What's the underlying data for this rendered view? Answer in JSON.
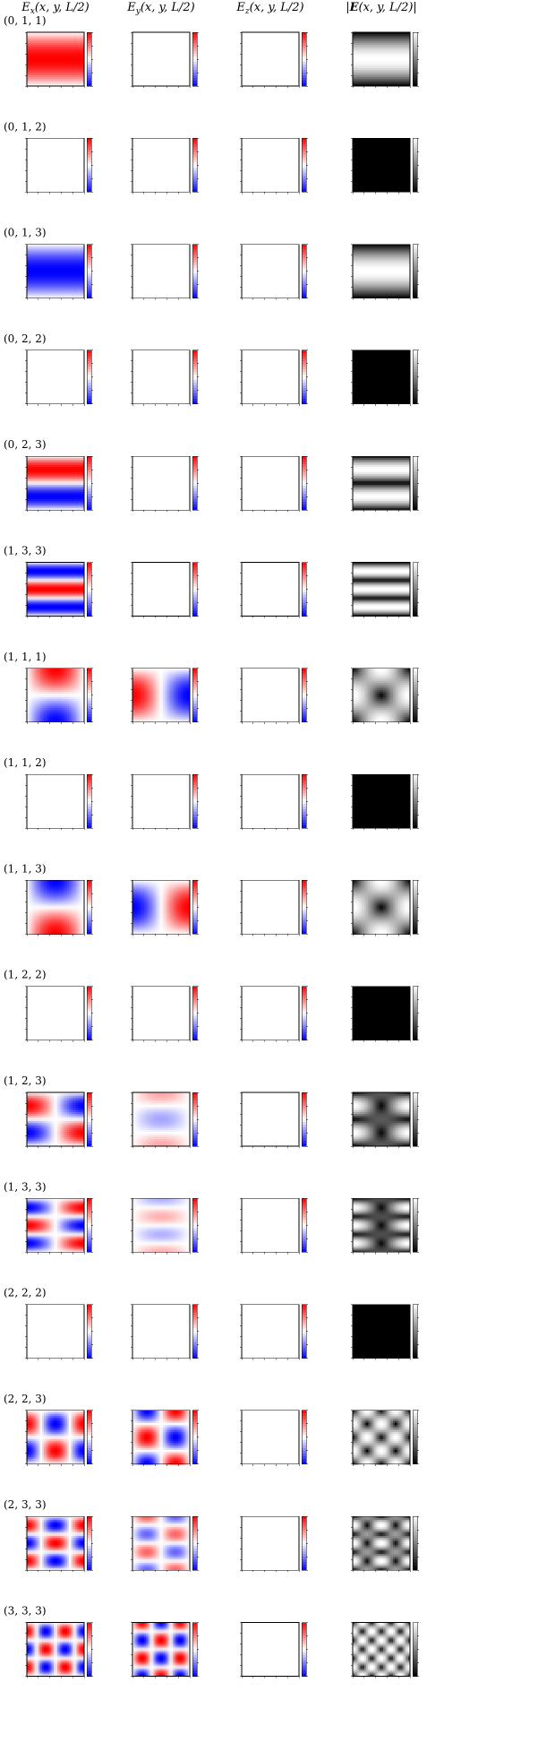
{
  "header": {
    "columns": [
      {
        "symbol": "E",
        "sub": "x",
        "args": "(x, y, L/2)"
      },
      {
        "symbol": "E",
        "sub": "y",
        "args": "(x, y, L/2)"
      },
      {
        "symbol": "E",
        "sub": "z",
        "args": "(x, y, L/2)"
      },
      {
        "pre": "|",
        "symbol": "E",
        "args": "(x, y, L/2)|"
      }
    ]
  },
  "rows": [
    "(0, 1, 1)",
    "(0, 1, 2)",
    "(0, 1, 3)",
    "(0, 2, 2)",
    "(0, 2, 3)",
    "(1, 3, 3)",
    "(1, 1, 1)",
    "(1, 1, 2)",
    "(1, 1, 3)",
    "(1, 2, 2)",
    "(1, 2, 3)",
    "(1, 3, 3)",
    "(2, 2, 2)",
    "(2, 2, 3)",
    "(2, 3, 3)",
    "(3, 3, 3)"
  ]
}
